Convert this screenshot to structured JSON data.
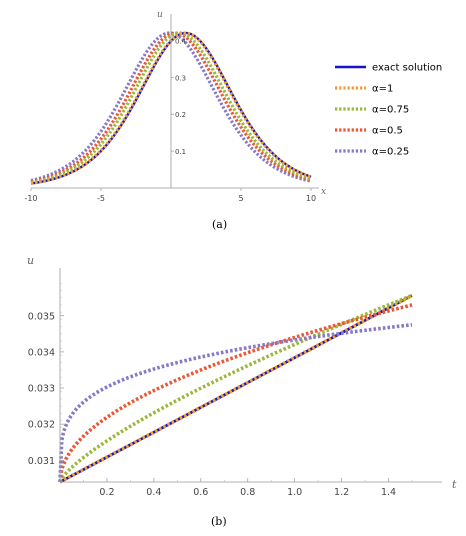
{
  "chart_data": [
    {
      "type": "line",
      "caption": "(a)",
      "xlabel": "x",
      "ylabel": "u",
      "xlim": [
        -10,
        10
      ],
      "ylim": [
        0,
        0.42
      ],
      "xticks": [
        -10,
        -5,
        5,
        10
      ],
      "yticks": [
        0.1,
        0.2,
        0.3,
        0.4
      ],
      "ytick_labels": [
        "0.1",
        "0.2",
        "0.3",
        "0.4"
      ],
      "grid": false,
      "legend_position": "right",
      "series": [
        {
          "name": "exact solution",
          "color": "#1515c8",
          "style": "solid",
          "curve": {
            "peak_x": 1.05,
            "peak_u": 0.42,
            "width": 4.5
          }
        },
        {
          "name": "α=1",
          "color": "#f0a030",
          "style": "dotted",
          "curve": {
            "peak_x": 1.0,
            "peak_u": 0.42,
            "width": 4.5
          }
        },
        {
          "name": "α=0.75",
          "color": "#9ab83a",
          "style": "dotted",
          "curve": {
            "peak_x": 0.6,
            "peak_u": 0.42,
            "width": 4.5
          }
        },
        {
          "name": "α=0.5",
          "color": "#ee5533",
          "style": "dotted",
          "curve": {
            "peak_x": 0.3,
            "peak_u": 0.42,
            "width": 4.5
          }
        },
        {
          "name": "α=0.25",
          "color": "#8878c8",
          "style": "dotted",
          "curve": {
            "peak_x": -0.1,
            "peak_u": 0.42,
            "width": 4.5
          }
        }
      ]
    },
    {
      "type": "line",
      "caption": "(b)",
      "xlabel": "t",
      "ylabel": "u",
      "xlim": [
        0,
        1.5
      ],
      "ylim": [
        0.0304,
        0.0361
      ],
      "xticks": [
        0.2,
        0.4,
        0.6,
        0.8,
        1.0,
        1.2,
        1.4
      ],
      "xtick_labels": [
        "0.2",
        "0.4",
        "0.6",
        "0.8",
        "1.0",
        "1.2",
        "1.4"
      ],
      "yticks": [
        0.031,
        0.032,
        0.033,
        0.034,
        0.035
      ],
      "ytick_labels": [
        "0.031",
        "0.032",
        "0.033",
        "0.034",
        "0.035"
      ],
      "grid": false,
      "series": [
        {
          "name": "exact solution",
          "color": "#1515c8",
          "style": "solid",
          "curve": {
            "u0": 0.0304,
            "u_end": 0.03556,
            "t_end": 1.5,
            "alpha": 1
          }
        },
        {
          "name": "α=1",
          "color": "#f0a030",
          "style": "dotted",
          "curve": {
            "u0": 0.0304,
            "u_end": 0.03556,
            "t_end": 1.5,
            "alpha": 1
          }
        },
        {
          "name": "α=0.75",
          "color": "#9ab83a",
          "style": "dotted",
          "curve": {
            "u0": 0.0304,
            "u_end": 0.03556,
            "t_end": 1.5,
            "alpha": 0.75
          }
        },
        {
          "name": "α=0.5",
          "color": "#ee5533",
          "style": "dotted",
          "curve": {
            "u0": 0.0304,
            "u_end": 0.0353,
            "t_end": 1.5,
            "alpha": 0.5
          }
        },
        {
          "name": "α=0.25",
          "color": "#8878c8",
          "style": "dotted",
          "curve": {
            "u0": 0.0304,
            "u_end": 0.03475,
            "t_end": 1.5,
            "alpha": 0.25
          }
        }
      ]
    }
  ]
}
